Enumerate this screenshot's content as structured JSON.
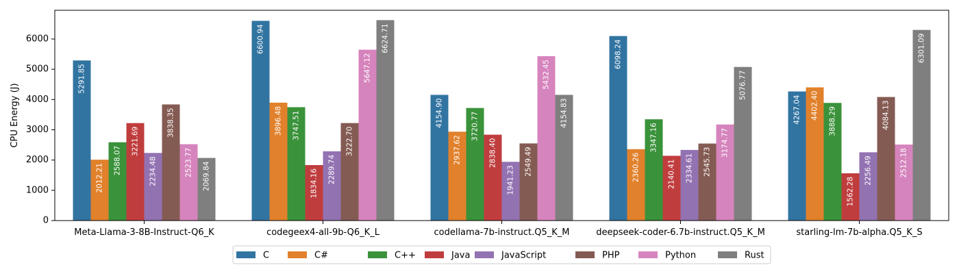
{
  "chart_data": {
    "type": "bar",
    "ylabel": "CPU Energy (J)",
    "xlabel": "",
    "ylim": [
      0,
      6950
    ],
    "yticks": [
      0,
      1000,
      2000,
      3000,
      4000,
      5000,
      6000
    ],
    "legend_position": "bottom-center",
    "categories": [
      "Meta-Llama-3-8B-Instruct-Q6_K",
      "codegeex4-all-9b-Q6_K_L",
      "codellama-7b-instruct.Q5_K_M",
      "deepseek-coder-6.7b-instruct.Q5_K_M",
      "starling-lm-7b-alpha.Q5_K_S"
    ],
    "series": [
      {
        "name": "C",
        "color": "#3274a1",
        "values": [
          5291.85,
          6600.94,
          4154.9,
          6098.24,
          4267.04
        ],
        "labels": [
          "5291.85",
          "6600.94",
          "4154.90",
          "6098.24",
          "4267.04"
        ]
      },
      {
        "name": "C#",
        "color": "#e1812c",
        "values": [
          2012.21,
          3896.48,
          2937.62,
          2360.26,
          4402.4
        ],
        "labels": [
          "2012.21",
          "3896.48",
          "2937.62",
          "2360.26",
          "4402.40"
        ]
      },
      {
        "name": "C++",
        "color": "#3a923a",
        "values": [
          2588.07,
          3747.51,
          3720.77,
          3347.16,
          3888.29
        ],
        "labels": [
          "2588.07",
          "3747.51",
          "3720.77",
          "3347.16",
          "3888.29"
        ]
      },
      {
        "name": "Java",
        "color": "#c03d3e",
        "values": [
          3221.69,
          1834.16,
          2838.4,
          2140.41,
          1562.28
        ],
        "labels": [
          "3221.69",
          "1834.16",
          "2838.40",
          "2140.41",
          "1562.28"
        ]
      },
      {
        "name": "JavaScript",
        "color": "#9372b2",
        "values": [
          2234.48,
          2289.74,
          1941.23,
          2334.61,
          2256.49
        ],
        "labels": [
          "2234.48",
          "2289.74",
          "1941.23",
          "2334.61",
          "2256.49"
        ]
      },
      {
        "name": "PHP",
        "color": "#845b53",
        "values": [
          3838.35,
          3222.7,
          2549.49,
          2545.73,
          4084.13
        ],
        "labels": [
          "3838.35",
          "3222.70",
          "2549.49",
          "2545.73",
          "4084.13"
        ]
      },
      {
        "name": "Python",
        "color": "#d684bd",
        "values": [
          2523.77,
          5647.12,
          5432.45,
          3174.77,
          2512.18
        ],
        "labels": [
          "2523.77",
          "5647.12",
          "5432.45",
          "3174.77",
          "2512.18"
        ]
      },
      {
        "name": "Rust",
        "color": "#7f7f7f",
        "values": [
          2069.84,
          6624.71,
          4154.83,
          5076.77,
          6301.09
        ],
        "labels": [
          "2069.84",
          "6624.71",
          "4154.83",
          "5076.77",
          "6301.09"
        ]
      }
    ]
  }
}
